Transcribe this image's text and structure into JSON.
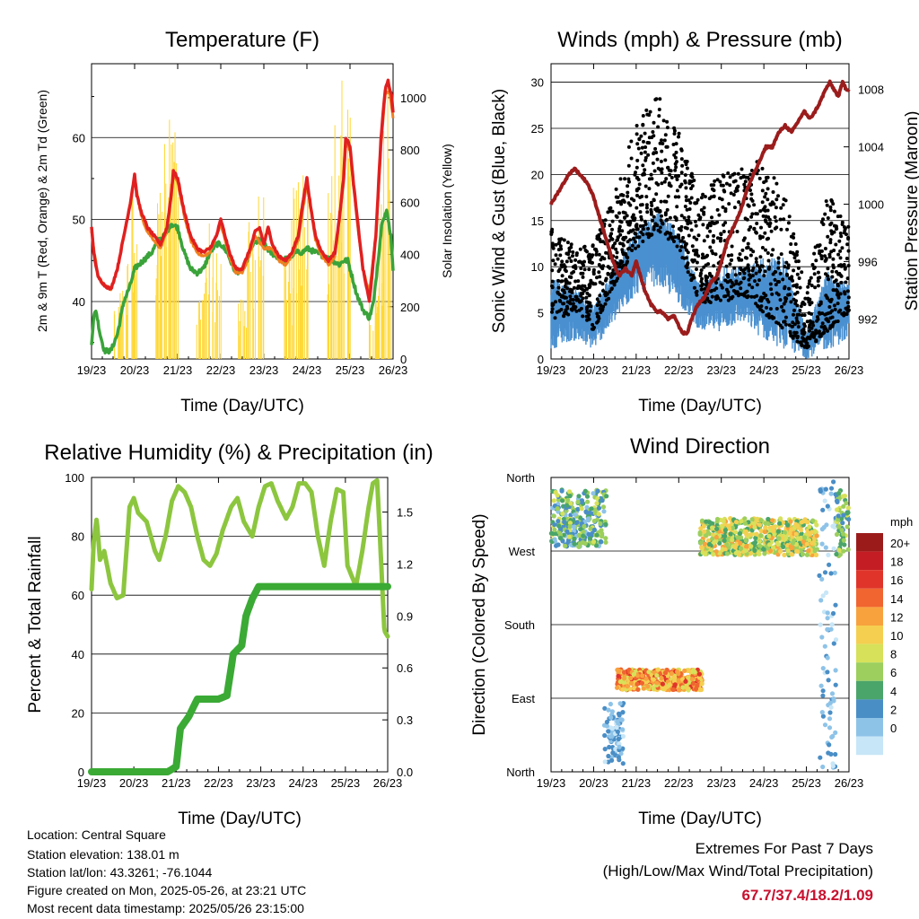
{
  "colors": {
    "t2m": "#e02020",
    "t9m": "#f08020",
    "td": "#3aa33a",
    "solar": "#ffd836",
    "wind": "#4a90d0",
    "gust": "#000000",
    "pressure": "#9b1c1c",
    "rh": "#8cc63f",
    "rain": "#3aaa35"
  },
  "charts": {
    "temperature": {
      "title": "Temperature (F)",
      "xlabel": "Time (Day/UTC)",
      "ylabel_left": "2m & 9m T (Red, Orange) & 2m Td (Green)",
      "ylabel_right": "Solar Insolation (Yellow)"
    },
    "winds": {
      "title": "Winds (mph) & Pressure (mb)",
      "xlabel": "Time (Day/UTC)",
      "ylabel_left": "Sonic Wind & Gust (Blue, Black)",
      "ylabel_right": "Station Pressure (Maroon)"
    },
    "rh": {
      "title": "Relative Humidity (%) & Precipitation (in)",
      "xlabel": "Time (Day/UTC)",
      "ylabel_left": "Percent & Total Rainfall"
    },
    "wdir": {
      "title": "Wind Direction",
      "xlabel": "Time (Day/UTC)",
      "ylabel_left": "Direction (Colored By Speed)",
      "legend_title": "mph"
    }
  },
  "chart_data": [
    {
      "type": "line",
      "title": "Temperature (F)",
      "xlabel": "Time (Day/UTC)",
      "ylabel": "2m & 9m T (Red, Orange) & 2m Td (Green)",
      "ylabel2": "Solar Insolation (Yellow)",
      "x_ticks": [
        "19/23",
        "20/23",
        "21/23",
        "22/23",
        "23/23",
        "24/23",
        "25/23",
        "26/23"
      ],
      "xlim": [
        0,
        7
      ],
      "ylim": [
        33,
        69
      ],
      "y_ticks": [
        40,
        50,
        60
      ],
      "y2lim": [
        0,
        1130
      ],
      "y2_ticks": [
        0,
        200,
        400,
        600,
        800,
        1000
      ],
      "series": [
        {
          "name": "2m T",
          "axis": "left",
          "x": [
            0,
            0.05,
            0.15,
            0.3,
            0.45,
            0.6,
            0.75,
            0.9,
            1.0,
            1.05,
            1.15,
            1.3,
            1.45,
            1.6,
            1.75,
            1.85,
            1.9,
            2.0,
            2.15,
            2.3,
            2.45,
            2.6,
            2.75,
            2.9,
            3.0,
            3.1,
            3.2,
            3.35,
            3.5,
            3.65,
            3.8,
            3.9,
            4.0,
            4.1,
            4.2,
            4.35,
            4.5,
            4.65,
            4.8,
            4.9,
            5.0,
            5.1,
            5.2,
            5.35,
            5.5,
            5.65,
            5.75,
            5.85,
            5.9,
            6.0,
            6.05,
            6.15,
            6.3,
            6.45,
            6.6,
            6.72,
            6.82,
            6.88,
            6.92,
            6.97,
            7.0
          ],
          "values": [
            49,
            46,
            43,
            42,
            41.5,
            44,
            48,
            52,
            55.5,
            53,
            51,
            49,
            48,
            47,
            49,
            53,
            56,
            55,
            51,
            48,
            46.5,
            46,
            46.5,
            48,
            50,
            48,
            46,
            44,
            44,
            46,
            48.5,
            49,
            47,
            49,
            47,
            45.5,
            45,
            46,
            48,
            52,
            55,
            51,
            48,
            46,
            45,
            46,
            50,
            55,
            60,
            59,
            56,
            51,
            44,
            40,
            48,
            60,
            66,
            67,
            66,
            65,
            63
          ]
        },
        {
          "name": "9m T",
          "axis": "left",
          "x": [
            0,
            0.15,
            0.3,
            0.45,
            0.6,
            0.75,
            0.9,
            1.0,
            1.15,
            1.3,
            1.45,
            1.6,
            1.75,
            1.9,
            2.0,
            2.15,
            2.3,
            2.45,
            2.6,
            2.75,
            3.0,
            3.2,
            3.35,
            3.5,
            3.65,
            3.8,
            4.0,
            4.2,
            4.35,
            4.5,
            4.65,
            4.8,
            5.0,
            5.2,
            5.35,
            5.5,
            5.65,
            5.85,
            5.9,
            6.0,
            6.15,
            6.3,
            6.45,
            6.6,
            6.72,
            6.82,
            6.92,
            7.0
          ],
          "values": [
            48.5,
            43,
            42,
            41.5,
            44,
            48,
            52,
            55,
            50.5,
            48.5,
            47.5,
            46.5,
            48.5,
            55.5,
            54.5,
            50.5,
            47.5,
            46,
            45.5,
            46,
            49.5,
            45.5,
            43.5,
            43.5,
            45.5,
            48,
            46.5,
            46.5,
            45,
            44.5,
            45.5,
            47.5,
            54.5,
            47.5,
            45.5,
            44.5,
            45.5,
            54.5,
            59.5,
            58.5,
            50.5,
            44,
            41,
            48,
            59,
            65.5,
            65.5,
            62.5
          ]
        },
        {
          "name": "2m Td",
          "axis": "left",
          "x": [
            0,
            0.05,
            0.1,
            0.2,
            0.3,
            0.45,
            0.6,
            0.75,
            0.9,
            1.0,
            1.2,
            1.4,
            1.55,
            1.7,
            1.85,
            2.0,
            2.15,
            2.3,
            2.45,
            2.6,
            2.75,
            2.9,
            3.0,
            3.15,
            3.3,
            3.45,
            3.6,
            3.75,
            3.9,
            4.0,
            4.15,
            4.3,
            4.45,
            4.6,
            4.75,
            4.9,
            5.0,
            5.2,
            5.4,
            5.6,
            5.75,
            5.85,
            5.95,
            6.05,
            6.15,
            6.3,
            6.45,
            6.55,
            6.65,
            6.75,
            6.85,
            6.95,
            7.0
          ],
          "values": [
            35,
            38,
            39,
            36,
            34,
            34,
            36,
            40,
            42,
            44,
            45,
            46,
            47.5,
            48,
            49.5,
            49,
            46,
            44,
            43.5,
            44,
            46,
            47,
            47,
            46,
            44,
            43.5,
            45,
            47,
            47.5,
            47,
            46,
            45.5,
            45,
            45.5,
            46,
            46,
            46.5,
            46,
            45.5,
            45,
            44.5,
            45,
            45,
            43,
            41,
            39,
            38,
            40,
            45,
            50,
            51,
            48,
            44
          ]
        },
        {
          "name": "Solar Insolation",
          "axis": "right",
          "peaks_x": [
            0.6,
            0.75,
            0.95,
            1.55,
            1.7,
            1.9,
            2.55,
            2.7,
            2.9,
            3.5,
            3.7,
            3.9,
            4.55,
            4.75,
            4.95,
            5.55,
            5.75,
            5.9,
            6.55,
            6.7,
            6.88
          ],
          "peaks_values": [
            200,
            400,
            700,
            620,
            850,
            960,
            250,
            550,
            460,
            230,
            600,
            650,
            400,
            700,
            780,
            750,
            900,
            1080,
            320,
            600,
            1100
          ]
        }
      ]
    },
    {
      "type": "scatter",
      "title": "Winds (mph) & Pressure (mb)",
      "xlabel": "Time (Day/UTC)",
      "ylabel": "Sonic Wind & Gust (Blue, Black)",
      "ylabel2": "Station Pressure (Maroon)",
      "x_ticks": [
        "19/23",
        "20/23",
        "21/23",
        "22/23",
        "23/23",
        "24/23",
        "25/23",
        "26/23"
      ],
      "xlim": [
        0,
        7
      ],
      "ylim": [
        0,
        32
      ],
      "y_ticks": [
        0,
        5,
        10,
        15,
        20,
        25,
        30
      ],
      "y2lim": [
        989.2,
        1009.8
      ],
      "y2_ticks": [
        992,
        996,
        1000,
        1004,
        1008
      ],
      "series": [
        {
          "name": "Station Pressure",
          "axis": "right",
          "x": [
            0,
            0.2,
            0.4,
            0.55,
            0.7,
            0.85,
            1.0,
            1.15,
            1.3,
            1.45,
            1.6,
            1.75,
            1.9,
            2.0,
            2.1,
            2.2,
            2.35,
            2.5,
            2.6,
            2.75,
            2.9,
            3.0,
            3.1,
            3.2,
            3.3,
            3.45,
            3.6,
            3.75,
            3.9,
            4.0,
            4.15,
            4.3,
            4.45,
            4.6,
            4.75,
            4.9,
            5.05,
            5.2,
            5.35,
            5.5,
            5.65,
            5.75,
            5.85,
            5.95,
            6.05,
            6.15,
            6.3,
            6.45,
            6.55,
            6.65,
            6.75,
            6.85,
            6.95,
            7.0
          ],
          "values": [
            1000,
            1001,
            1002,
            1002.5,
            1002,
            1001.5,
            1000.5,
            999,
            997.5,
            996,
            995,
            995.5,
            995,
            996,
            995,
            994,
            993,
            992.5,
            992.5,
            992,
            992.2,
            991.5,
            991,
            991,
            992,
            993,
            993.5,
            994.5,
            995,
            996,
            997.5,
            998.5,
            999.5,
            1001,
            1002,
            1003,
            1004,
            1004,
            1005,
            1005.5,
            1005,
            1005.5,
            1006,
            1006.5,
            1006,
            1006.2,
            1007,
            1008,
            1008.5,
            1008,
            1007.5,
            1008.5,
            1008,
            1008
          ]
        },
        {
          "name": "Sonic Wind",
          "axis": "left",
          "envelope_x": [
            0,
            0.5,
            1.0,
            1.5,
            2.0,
            2.5,
            3.0,
            3.5,
            4.0,
            4.5,
            5.0,
            5.5,
            6.0,
            6.5,
            7.0
          ],
          "envelope_low": [
            1,
            2,
            1,
            4,
            7,
            8,
            6,
            3,
            3,
            4,
            2,
            1,
            0,
            1,
            2
          ],
          "envelope_high": [
            9,
            8,
            6,
            10,
            14,
            16,
            14,
            8,
            10,
            10,
            11,
            11,
            3,
            10,
            8
          ]
        },
        {
          "name": "Gust",
          "axis": "left",
          "envelope_x": [
            0,
            0.5,
            1.0,
            1.5,
            2.0,
            2.5,
            3.0,
            3.5,
            4.0,
            4.5,
            5.0,
            5.5,
            6.0,
            6.5,
            7.0
          ],
          "envelope_low": [
            4,
            5,
            3,
            8,
            12,
            14,
            12,
            6,
            6,
            7,
            5,
            3,
            1,
            3,
            5
          ],
          "envelope_high": [
            14,
            12,
            12,
            18,
            25,
            28,
            24,
            17,
            20,
            20,
            22,
            17,
            7,
            18,
            14
          ]
        }
      ]
    },
    {
      "type": "line",
      "title": "Relative Humidity (%) & Precipitation (in)",
      "xlabel": "Time (Day/UTC)",
      "ylabel": "Percent & Total Rainfall",
      "x_ticks": [
        "19/23",
        "20/23",
        "21/23",
        "22/23",
        "23/23",
        "24/23",
        "25/23",
        "26/23"
      ],
      "xlim": [
        0,
        7
      ],
      "ylim": [
        0,
        100
      ],
      "y_ticks": [
        0,
        20,
        40,
        60,
        80,
        100
      ],
      "y2lim": [
        0,
        1.7
      ],
      "y2_ticks": [
        "0.0",
        "0.3",
        "0.6",
        "0.9",
        "1.2",
        "1.5"
      ],
      "series": [
        {
          "name": "Relative Humidity",
          "axis": "left",
          "x": [
            0,
            0.05,
            0.12,
            0.2,
            0.3,
            0.45,
            0.6,
            0.75,
            0.9,
            1.0,
            1.1,
            1.3,
            1.5,
            1.6,
            1.75,
            1.9,
            2.05,
            2.2,
            2.35,
            2.5,
            2.65,
            2.8,
            2.95,
            3.1,
            3.3,
            3.45,
            3.6,
            3.8,
            3.95,
            4.1,
            4.25,
            4.4,
            4.6,
            4.75,
            4.9,
            5.05,
            5.2,
            5.35,
            5.5,
            5.65,
            5.8,
            5.95,
            6.05,
            6.25,
            6.4,
            6.55,
            6.65,
            6.75,
            6.85,
            6.92,
            7.0
          ],
          "values": [
            62,
            78,
            86,
            72,
            75,
            64,
            59,
            60,
            90,
            93,
            88,
            85,
            75,
            72,
            80,
            92,
            97,
            95,
            90,
            80,
            72,
            70,
            74,
            82,
            90,
            93,
            85,
            80,
            90,
            97,
            98,
            92,
            86,
            90,
            98,
            98,
            95,
            80,
            70,
            85,
            96,
            95,
            70,
            63,
            75,
            90,
            98,
            99,
            70,
            48,
            46
          ]
        },
        {
          "name": "Total Rainfall",
          "axis": "right",
          "x": [
            0,
            1.8,
            2.0,
            2.1,
            2.3,
            2.5,
            3.0,
            3.2,
            3.35,
            3.55,
            3.65,
            3.8,
            3.95,
            4.2,
            4.4,
            5.0,
            6.0,
            7.0
          ],
          "values": [
            0,
            0,
            0.03,
            0.25,
            0.32,
            0.42,
            0.42,
            0.44,
            0.68,
            0.73,
            0.9,
            1.0,
            1.07,
            1.07,
            1.07,
            1.07,
            1.07,
            1.07
          ]
        }
      ]
    },
    {
      "type": "scatter",
      "title": "Wind Direction",
      "xlabel": "Time (Day/UTC)",
      "ylabel": "Direction (Colored By Speed)",
      "x_ticks": [
        "19/23",
        "20/23",
        "21/23",
        "22/23",
        "23/23",
        "24/23",
        "25/23",
        "26/23"
      ],
      "xlim": [
        0,
        7
      ],
      "ylim": [
        0,
        360
      ],
      "y_ticks": [
        "North",
        "East",
        "South",
        "West",
        "North"
      ],
      "y_tick_values": [
        0,
        90,
        180,
        270,
        360
      ],
      "legend": {
        "title": "mph",
        "labels": [
          "20+",
          "18",
          "16",
          "14",
          "12",
          "10",
          "8",
          "6",
          "4",
          "2",
          "0"
        ],
        "colors": [
          "#9b1b1b",
          "#c41e24",
          "#e0342a",
          "#f06530",
          "#f8a23e",
          "#f5cf50",
          "#d7e15a",
          "#9ccf5e",
          "#4aa56a",
          "#4a8ec6",
          "#8ec3e8",
          "#c7e6f7"
        ]
      },
      "clusters": [
        {
          "x_range": [
            0,
            1.3
          ],
          "dir_range": [
            275,
            345
          ],
          "speed_range": [
            2,
            10
          ]
        },
        {
          "x_range": [
            1.25,
            1.7
          ],
          "dir_range": [
            10,
            85
          ],
          "speed_range": [
            0,
            5
          ]
        },
        {
          "x_range": [
            1.55,
            3.55
          ],
          "dir_range": [
            100,
            125
          ],
          "speed_range": [
            9,
            18
          ]
        },
        {
          "x_range": [
            3.5,
            6.25
          ],
          "dir_range": [
            265,
            310
          ],
          "speed_range": [
            5,
            14
          ]
        },
        {
          "x_range": [
            6.3,
            6.7
          ],
          "dir_range": [
            5,
            355
          ],
          "speed_range": [
            0,
            5
          ]
        },
        {
          "x_range": [
            6.7,
            7.0
          ],
          "dir_range": [
            260,
            345
          ],
          "speed_range": [
            3,
            11
          ]
        }
      ]
    }
  ],
  "info": {
    "location": "Location: Central Square",
    "elevation": "Station elevation: 138.01 m",
    "latlon": "Station lat/lon: 43.3261; -76.1044",
    "created": "Figure created on Mon, 2025-05-26, at 23:21 UTC",
    "recent": "Most recent data timestamp: 2025/05/26 23:15:00"
  },
  "extremes": {
    "title": "Extremes For Past 7 Days",
    "subtitle": "(High/Low/Max Wind/Total Precipitation)",
    "values": "67.7/37.4/18.2/1.09"
  }
}
